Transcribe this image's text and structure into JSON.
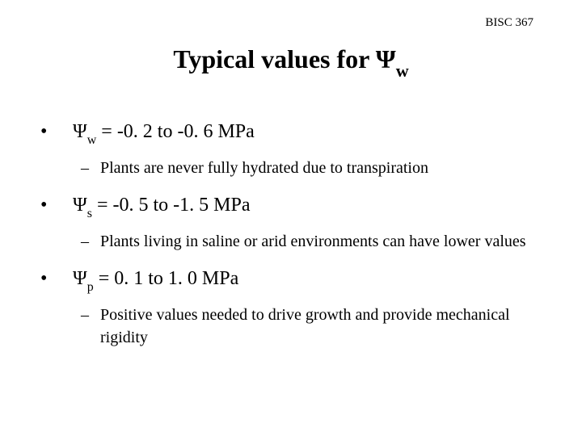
{
  "course_code": "BISC 367",
  "title_prefix": "Typical values for ",
  "title_symbol": "Ψ",
  "title_sub": "w",
  "items": [
    {
      "psi": "Ψ",
      "sub": "w",
      "value": " = -0. 2 to -0. 6 MPa",
      "note": "Plants are never fully hydrated due to transpiration"
    },
    {
      "psi": "Ψ",
      "sub": "s",
      "value": " = -0. 5 to -1. 5 MPa",
      "note": "Plants living in saline or arid environments can have lower values"
    },
    {
      "psi": "Ψ",
      "sub": "p",
      "value": " = 0. 1 to 1. 0 MPa",
      "note": "Positive values needed to drive growth and provide mechanical rigidity"
    }
  ],
  "styling": {
    "background_color": "#ffffff",
    "text_color": "#000000",
    "font_family": "Times New Roman",
    "title_fontsize": 32,
    "bullet_fontsize": 24,
    "subbullet_fontsize": 20,
    "course_fontsize": 15,
    "bullet_marker": "•",
    "sub_marker": "–"
  }
}
